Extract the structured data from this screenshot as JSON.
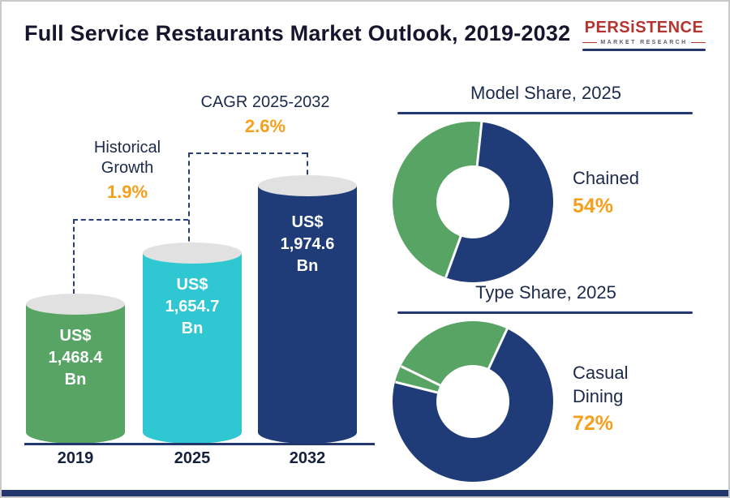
{
  "logo": {
    "name": "PERSiSTENCE",
    "tagline": "MARKET RESEARCH"
  },
  "colors": {
    "accent_orange": "#f5a01d",
    "green": "#57a464",
    "cyan": "#2fc7d1",
    "navy": "#1f3c78",
    "text_dark": "#1b2a4a"
  },
  "chart_data": [
    {
      "type": "bar",
      "title": "Full Service Restaurants Market Outlook, 2019-2032",
      "categories": [
        "2019",
        "2025",
        "2032"
      ],
      "values": [
        1468.4,
        1654.7,
        1974.6
      ],
      "ylabel": "US$ Bn",
      "bars": [
        {
          "year": "2019",
          "currency": "US$",
          "value": "1,468.4",
          "unit": "Bn",
          "color": "#57a464"
        },
        {
          "year": "2025",
          "currency": "US$",
          "value": "1,654.7",
          "unit": "Bn",
          "color": "#2fc7d1"
        },
        {
          "year": "2032",
          "currency": "US$",
          "value": "1,974.6",
          "unit": "Bn",
          "color": "#1f3c78"
        }
      ],
      "annotations": [
        {
          "label": "Historical Growth",
          "value": "1.9%"
        },
        {
          "label": "CAGR 2025-2032",
          "value": "2.6%"
        }
      ]
    },
    {
      "type": "pie",
      "title": "Model Share, 2025",
      "segments": [
        {
          "label": "Chained",
          "value": 54,
          "color": "#1f3c78"
        },
        {
          "label": "",
          "value": 46,
          "color": "#57a464"
        }
      ],
      "callout": {
        "label": "Chained",
        "value": "54%"
      }
    },
    {
      "type": "pie",
      "title": "Type Share, 2025",
      "segments": [
        {
          "label": "Casual Dining",
          "value": 72,
          "color": "#1f3c78"
        },
        {
          "label": "",
          "value": 28,
          "color": "#57a464"
        }
      ],
      "callout": {
        "label": "Casual Dining",
        "value": "72%"
      }
    }
  ]
}
